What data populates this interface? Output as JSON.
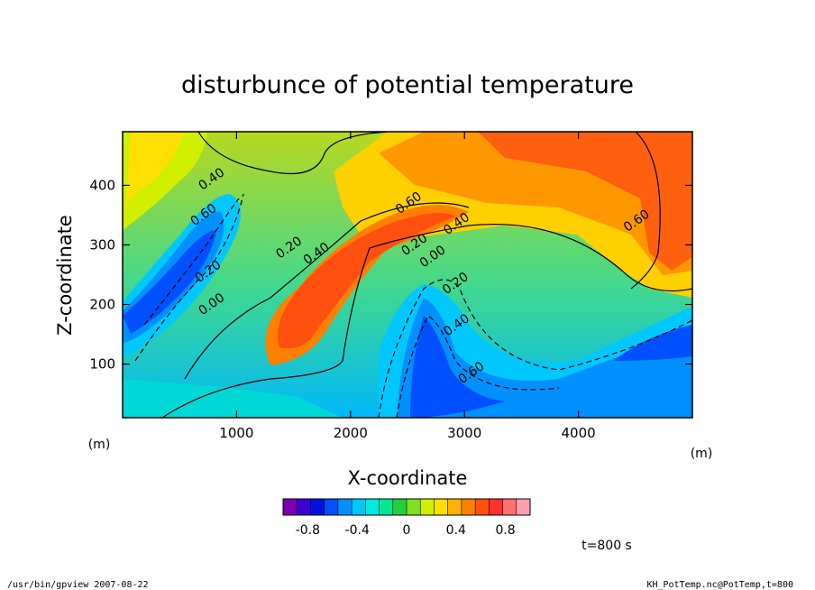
{
  "chart_data": {
    "type": "heatmap",
    "title": "disturbunce of potential temperature",
    "xlabel": "X-coordinate",
    "ylabel": "Z-coordinate",
    "x_unit": "(m)",
    "y_unit": "(m)",
    "xlim": [
      0,
      5000
    ],
    "ylim": [
      10,
      490
    ],
    "x_ticks": [
      1000,
      2000,
      3000,
      4000
    ],
    "y_ticks": [
      100,
      200,
      300,
      400
    ],
    "color_scale": {
      "min": -1.0,
      "max": 1.0,
      "tick_values": [
        -0.8,
        -0.4,
        0,
        0.4,
        0.8
      ],
      "tick_labels": [
        "-0.8",
        "-0.4",
        "0",
        "0.4",
        "0.8"
      ],
      "palette": [
        "#7a00b0",
        "#3a00d0",
        "#0010e0",
        "#0050ff",
        "#0090ff",
        "#00c8ff",
        "#00e8e0",
        "#00e890",
        "#20d040",
        "#80e020",
        "#d0f000",
        "#ffe000",
        "#ffb000",
        "#ff8000",
        "#ff5010",
        "#ff3030",
        "#ff7070",
        "#ff9fb0"
      ]
    },
    "contour_labels": [
      {
        "text": "0.40",
        "x": 800,
        "z": 405
      },
      {
        "text": "0.60",
        "x": 730,
        "z": 345
      },
      {
        "text": "0.20",
        "x": 770,
        "z": 250
      },
      {
        "text": "0.00",
        "x": 800,
        "z": 195
      },
      {
        "text": "0.20",
        "x": 1480,
        "z": 290
      },
      {
        "text": "0.40",
        "x": 1720,
        "z": 280
      },
      {
        "text": "0.60",
        "x": 2530,
        "z": 365
      },
      {
        "text": "0.40",
        "x": 2950,
        "z": 330
      },
      {
        "text": "0.20",
        "x": 2580,
        "z": 295
      },
      {
        "text": "0.00",
        "x": 2740,
        "z": 275
      },
      {
        "text": "0.20",
        "x": 2940,
        "z": 230
      },
      {
        "text": "0.40",
        "x": 2950,
        "z": 160
      },
      {
        "text": "0.60",
        "x": 3080,
        "z": 80
      },
      {
        "text": "0.60",
        "x": 4530,
        "z": 335
      }
    ],
    "annotation": "t=800  s"
  },
  "footer": {
    "left": "/usr/bin/gpview  2007-08-22",
    "right": "KH_PotTemp.nc@PotTemp,t=800"
  }
}
